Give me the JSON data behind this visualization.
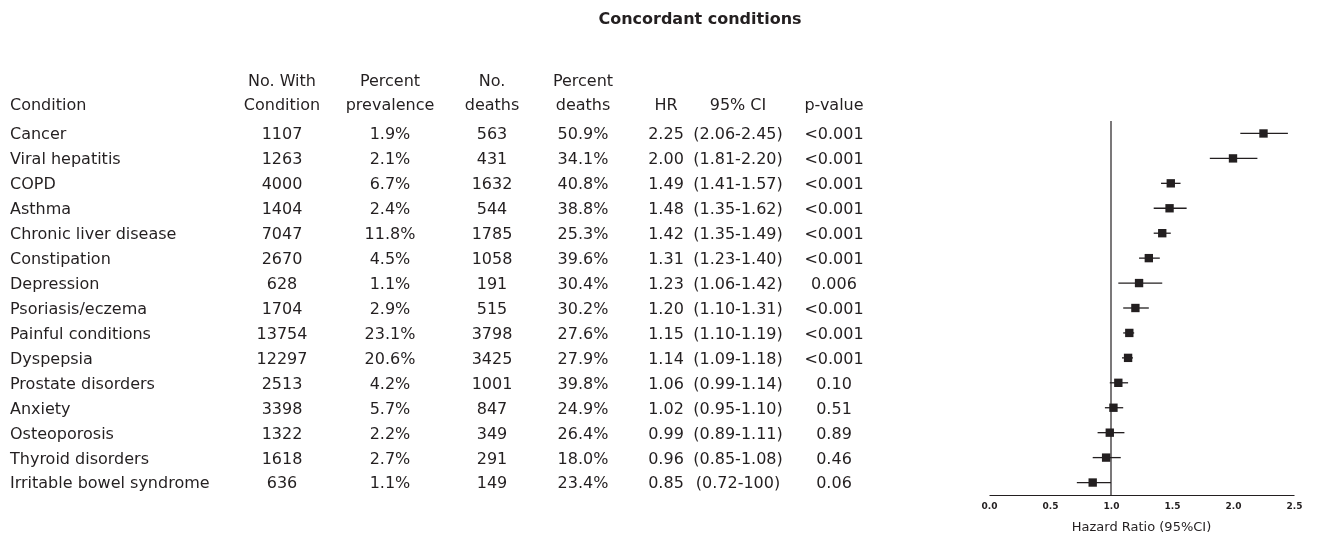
{
  "chart_data": [
    {
      "type": "other",
      "title": "Concordant conditions",
      "ylabel": "Condition",
      "categories": [
        "No. With Condition",
        "Percent prevalence",
        "No. deaths",
        "Percent deaths",
        "HR",
        "95% CI",
        "p-value"
      ],
      "y_categories": [
        "Cancer",
        "Viral hepatitis",
        "COPD",
        "Asthma",
        "Chronic liver disease",
        "Constipation",
        "Depression",
        "Psoriasis/eczema",
        "Painful conditions",
        "Dyspepsia",
        "Prostate disorders",
        "Anxiety",
        "Osteoporosis",
        "Thyroid disorders",
        "Irritable bowel syndrome"
      ],
      "cell_labels": [
        [
          "1107",
          "1.9%",
          "563",
          "50.9%",
          "2.25",
          "(2.06-2.45)",
          "<0.001"
        ],
        [
          "1263",
          "2.1%",
          "431",
          "34.1%",
          "2.00",
          "(1.81-2.20)",
          "<0.001"
        ],
        [
          "4000",
          "6.7%",
          "1632",
          "40.8%",
          "1.49",
          "(1.41-1.57)",
          "<0.001"
        ],
        [
          "1404",
          "2.4%",
          "544",
          "38.8%",
          "1.48",
          "(1.35-1.62)",
          "<0.001"
        ],
        [
          "7047",
          "11.8%",
          "1785",
          "25.3%",
          "1.42",
          "(1.35-1.49)",
          "<0.001"
        ],
        [
          "2670",
          "4.5%",
          "1058",
          "39.6%",
          "1.31",
          "(1.23-1.40)",
          "<0.001"
        ],
        [
          "628",
          "1.1%",
          "191",
          "30.4%",
          "1.23",
          "(1.06-1.42)",
          "0.006"
        ],
        [
          "1704",
          "2.9%",
          "515",
          "30.2%",
          "1.20",
          "(1.10-1.31)",
          "<0.001"
        ],
        [
          "13754",
          "23.1%",
          "3798",
          "27.6%",
          "1.15",
          "(1.10-1.19)",
          "<0.001"
        ],
        [
          "12297",
          "20.6%",
          "3425",
          "27.9%",
          "1.14",
          "(1.09-1.18)",
          "<0.001"
        ],
        [
          "2513",
          "4.2%",
          "1001",
          "39.8%",
          "1.06",
          "(0.99-1.14)",
          "0.10"
        ],
        [
          "3398",
          "5.7%",
          "847",
          "24.9%",
          "1.02",
          "(0.95-1.10)",
          "0.51"
        ],
        [
          "1322",
          "2.2%",
          "349",
          "26.4%",
          "0.99",
          "(0.89-1.11)",
          "0.89"
        ],
        [
          "1618",
          "2.7%",
          "291",
          "18.0%",
          "0.96",
          "(0.85-1.08)",
          "0.46"
        ],
        [
          "636",
          "1.1%",
          "149",
          "23.4%",
          "0.85",
          "(0.72-100)",
          "0.06"
        ]
      ]
    },
    {
      "type": "scatter",
      "orientation": "horizontal",
      "xlabel": "Hazard Ratio (95%CI)",
      "categories": [
        null,
        null,
        null,
        null,
        null,
        null,
        null,
        null,
        null,
        null,
        null,
        null,
        null,
        null,
        null
      ],
      "values": [
        2.25,
        2.0,
        1.49,
        1.48,
        1.42,
        1.31,
        1.23,
        1.2,
        1.15,
        1.14,
        1.06,
        1.02,
        0.99,
        0.96,
        0.85
      ],
      "errors": [
        [
          2.06,
          2.45
        ],
        [
          1.81,
          2.2
        ],
        [
          1.41,
          1.57
        ],
        [
          1.35,
          1.62
        ],
        [
          1.35,
          1.49
        ],
        [
          1.23,
          1.4
        ],
        [
          1.06,
          1.42
        ],
        [
          1.1,
          1.31
        ],
        [
          1.1,
          1.19
        ],
        [
          1.09,
          1.18
        ],
        [
          0.99,
          1.14
        ],
        [
          0.95,
          1.1
        ],
        [
          0.89,
          1.11
        ],
        [
          0.85,
          1.08
        ],
        [
          0.72,
          1.0
        ]
      ],
      "color": "#231f20",
      "marker": "square",
      "xlim": [
        0,
        2.5
      ],
      "xticks": [
        {
          "value": 0,
          "label": "0.0"
        },
        {
          "value": 0.5,
          "label": "0.5"
        },
        {
          "value": 1,
          "label": "1.0"
        },
        {
          "value": 1.5,
          "label": "1.5"
        },
        {
          "value": 2,
          "label": "2.0"
        },
        {
          "value": 2.5,
          "label": "2.5"
        }
      ],
      "ref_lines": [
        {
          "axis": "x",
          "value": 1,
          "color": "#231f20"
        }
      ],
      "tick_labels": "x",
      "grid": false
    }
  ]
}
